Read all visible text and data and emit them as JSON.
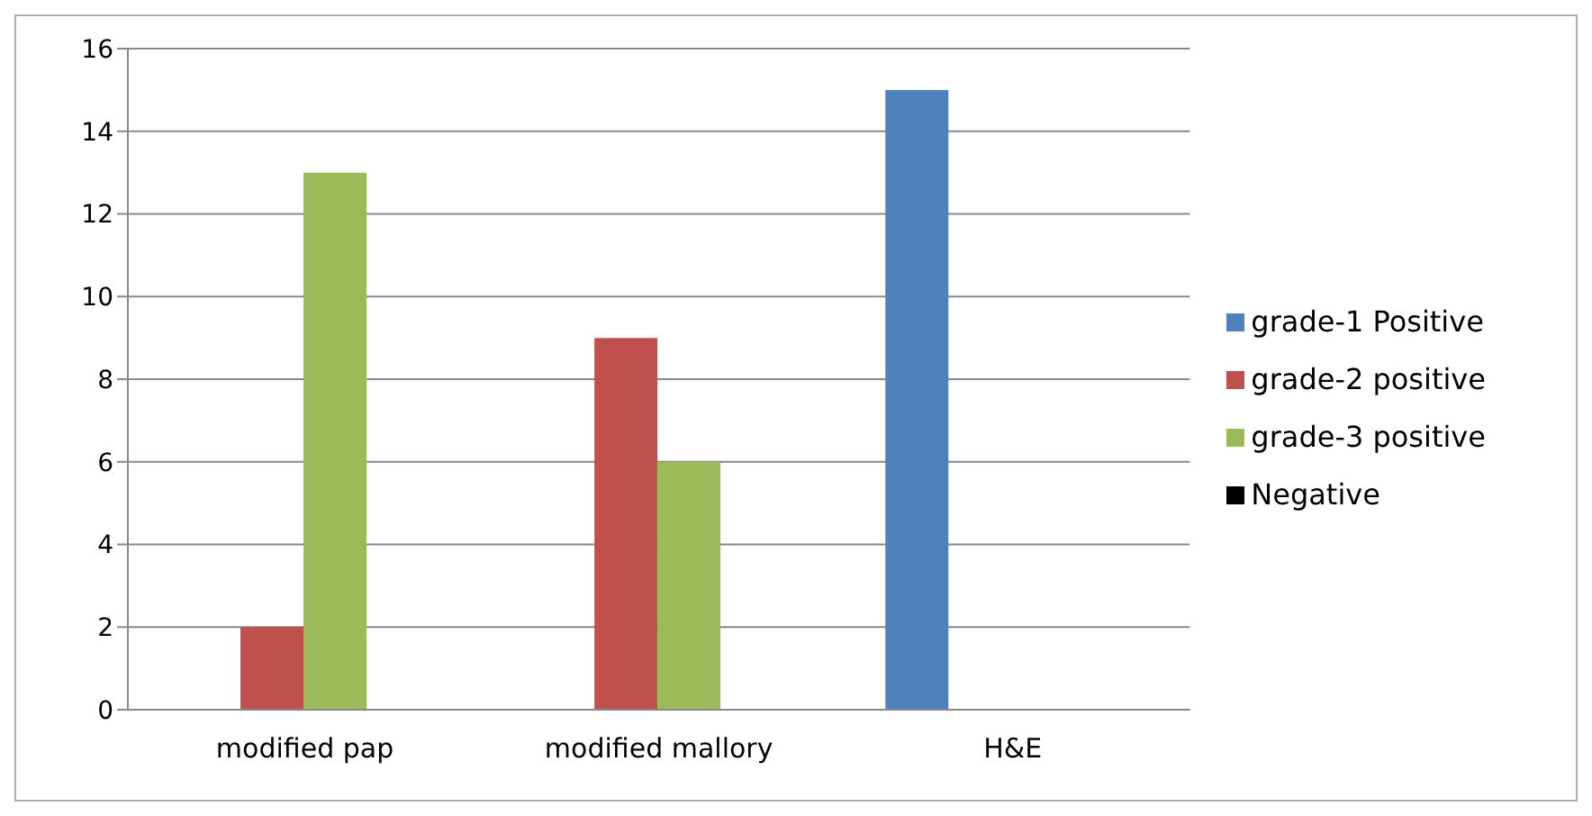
{
  "chart_data": {
    "type": "bar",
    "categories": [
      "modified pap",
      "modified mallory",
      "H&E"
    ],
    "series": [
      {
        "name": "grade-1 Positive",
        "color": "#4f81bd",
        "values": [
          0,
          0,
          15
        ]
      },
      {
        "name": "grade-2 positive",
        "color": "#c0504d",
        "values": [
          2,
          9,
          0
        ]
      },
      {
        "name": "grade-3 positive",
        "color": "#9bbb59",
        "values": [
          13,
          6,
          0
        ]
      },
      {
        "name": "Negative",
        "color": "#000000",
        "values": [
          0,
          0,
          0
        ]
      }
    ],
    "ylim": [
      0,
      16
    ],
    "yticks": [
      0,
      2,
      4,
      6,
      8,
      10,
      12,
      14,
      16
    ],
    "grid": "y",
    "legend": "right"
  }
}
